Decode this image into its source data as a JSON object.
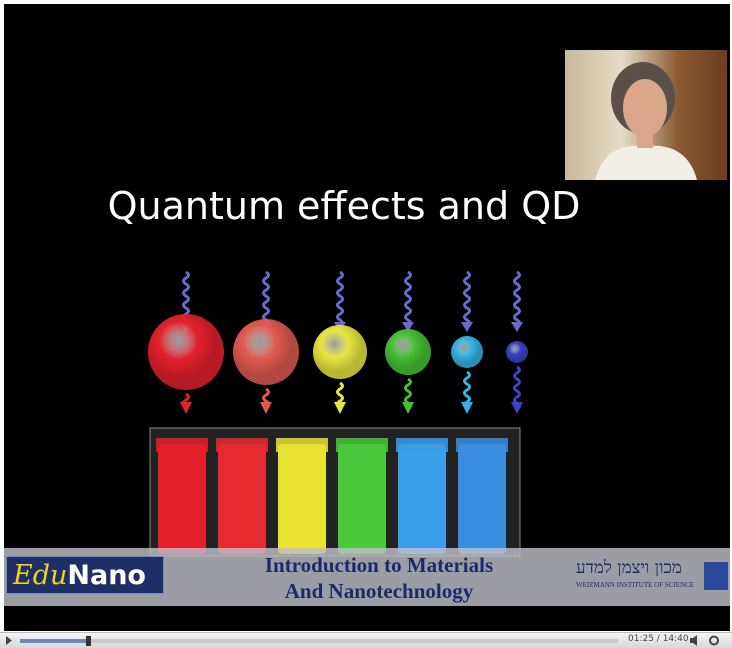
{
  "slide": {
    "title": "Quantum effects and QD"
  },
  "banner": {
    "logo_part1": "Edu",
    "logo_part2": "Nano",
    "course_line1": "Introduction  to Materials",
    "course_line2": "And Nanotechnology",
    "institute_hebrew": "מכון ויצמן למדע",
    "institute_english": "WEIZMANN INSTITUTE OF SCIENCE"
  },
  "player": {
    "time": "01:25 / 14:40"
  }
}
